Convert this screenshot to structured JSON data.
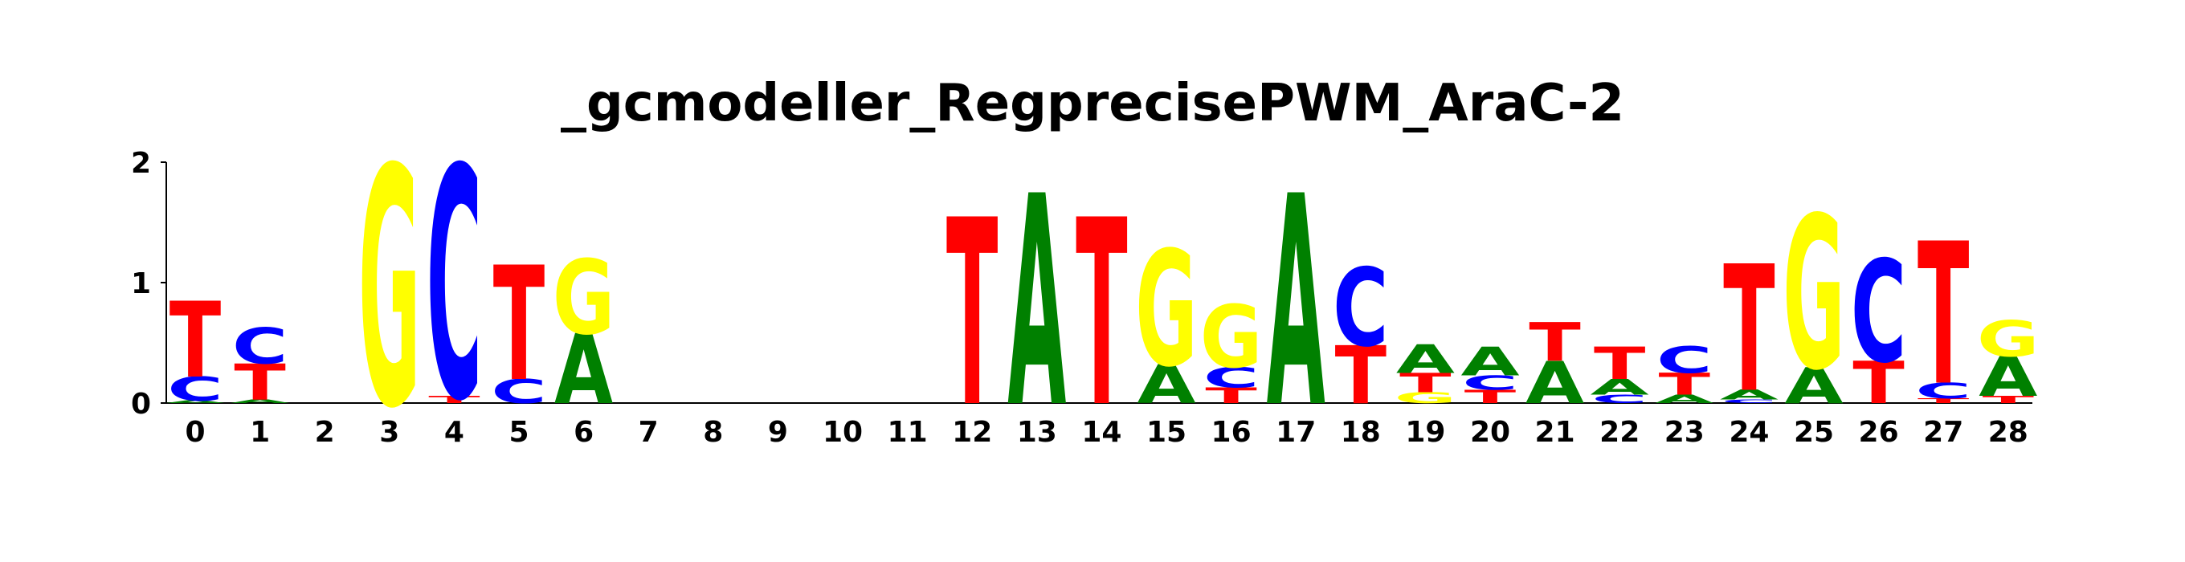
{
  "chart_data": {
    "type": "sequence-logo",
    "title": "_gcmodeller_RegprecisePWM_AraC-2",
    "xlabel": "",
    "ylabel": "",
    "ylim": [
      0,
      2
    ],
    "y_ticks": [
      "0",
      "1",
      "2"
    ],
    "positions": [
      "0",
      "1",
      "2",
      "3",
      "4",
      "5",
      "6",
      "7",
      "8",
      "9",
      "10",
      "11",
      "12",
      "13",
      "14",
      "15",
      "16",
      "17",
      "18",
      "19",
      "20",
      "21",
      "22",
      "23",
      "24",
      "25",
      "26",
      "27",
      "28"
    ],
    "colors": {
      "A": "#008000",
      "C": "#0000ff",
      "G": "#ffff00",
      "T": "#ff0000"
    },
    "stacks": [
      [
        {
          "b": "A",
          "h": 0.02
        },
        {
          "b": "C",
          "h": 0.2
        },
        {
          "b": "T",
          "h": 0.63
        }
      ],
      [
        {
          "b": "A",
          "h": 0.03
        },
        {
          "b": "T",
          "h": 0.3
        },
        {
          "b": "C",
          "h": 0.3
        }
      ],
      [],
      [
        {
          "b": "G",
          "h": 1.98
        }
      ],
      [
        {
          "b": "T",
          "h": 0.06
        },
        {
          "b": "C",
          "h": 1.92
        }
      ],
      [
        {
          "b": "C",
          "h": 0.2
        },
        {
          "b": "T",
          "h": 0.95
        }
      ],
      [
        {
          "b": "A",
          "h": 0.58
        },
        {
          "b": "G",
          "h": 0.62
        }
      ],
      [],
      [],
      [],
      [],
      [],
      [
        {
          "b": "T",
          "h": 1.55
        }
      ],
      [
        {
          "b": "A",
          "h": 1.75
        }
      ],
      [
        {
          "b": "T",
          "h": 1.55
        }
      ],
      [
        {
          "b": "A",
          "h": 0.32
        },
        {
          "b": "G",
          "h": 0.96
        }
      ],
      [
        {
          "b": "T",
          "h": 0.13
        },
        {
          "b": "C",
          "h": 0.17
        },
        {
          "b": "G",
          "h": 0.52
        }
      ],
      [
        {
          "b": "A",
          "h": 1.75
        }
      ],
      [
        {
          "b": "T",
          "h": 0.48
        },
        {
          "b": "C",
          "h": 0.65
        }
      ],
      [
        {
          "b": "G",
          "h": 0.09
        },
        {
          "b": "T",
          "h": 0.16
        },
        {
          "b": "A",
          "h": 0.24
        }
      ],
      [
        {
          "b": "T",
          "h": 0.11
        },
        {
          "b": "C",
          "h": 0.12
        },
        {
          "b": "A",
          "h": 0.24
        }
      ],
      [
        {
          "b": "A",
          "h": 0.35
        },
        {
          "b": "T",
          "h": 0.32
        }
      ],
      [
        {
          "b": "C",
          "h": 0.07
        },
        {
          "b": "A",
          "h": 0.13
        },
        {
          "b": "T",
          "h": 0.27
        }
      ],
      [
        {
          "b": "A",
          "h": 0.07
        },
        {
          "b": "T",
          "h": 0.18
        },
        {
          "b": "C",
          "h": 0.22
        }
      ],
      [
        {
          "b": "C",
          "h": 0.03
        },
        {
          "b": "A",
          "h": 0.08
        },
        {
          "b": "T",
          "h": 1.05
        }
      ],
      [
        {
          "b": "A",
          "h": 0.3
        },
        {
          "b": "G",
          "h": 1.27
        }
      ],
      [
        {
          "b": "T",
          "h": 0.35
        },
        {
          "b": "C",
          "h": 0.85
        }
      ],
      [
        {
          "b": "T",
          "h": 0.04
        },
        {
          "b": "C",
          "h": 0.13
        },
        {
          "b": "T",
          "h": 1.18
        }
      ],
      [
        {
          "b": "T",
          "h": 0.06
        },
        {
          "b": "A",
          "h": 0.33
        },
        {
          "b": "G",
          "h": 0.3
        }
      ]
    ]
  }
}
